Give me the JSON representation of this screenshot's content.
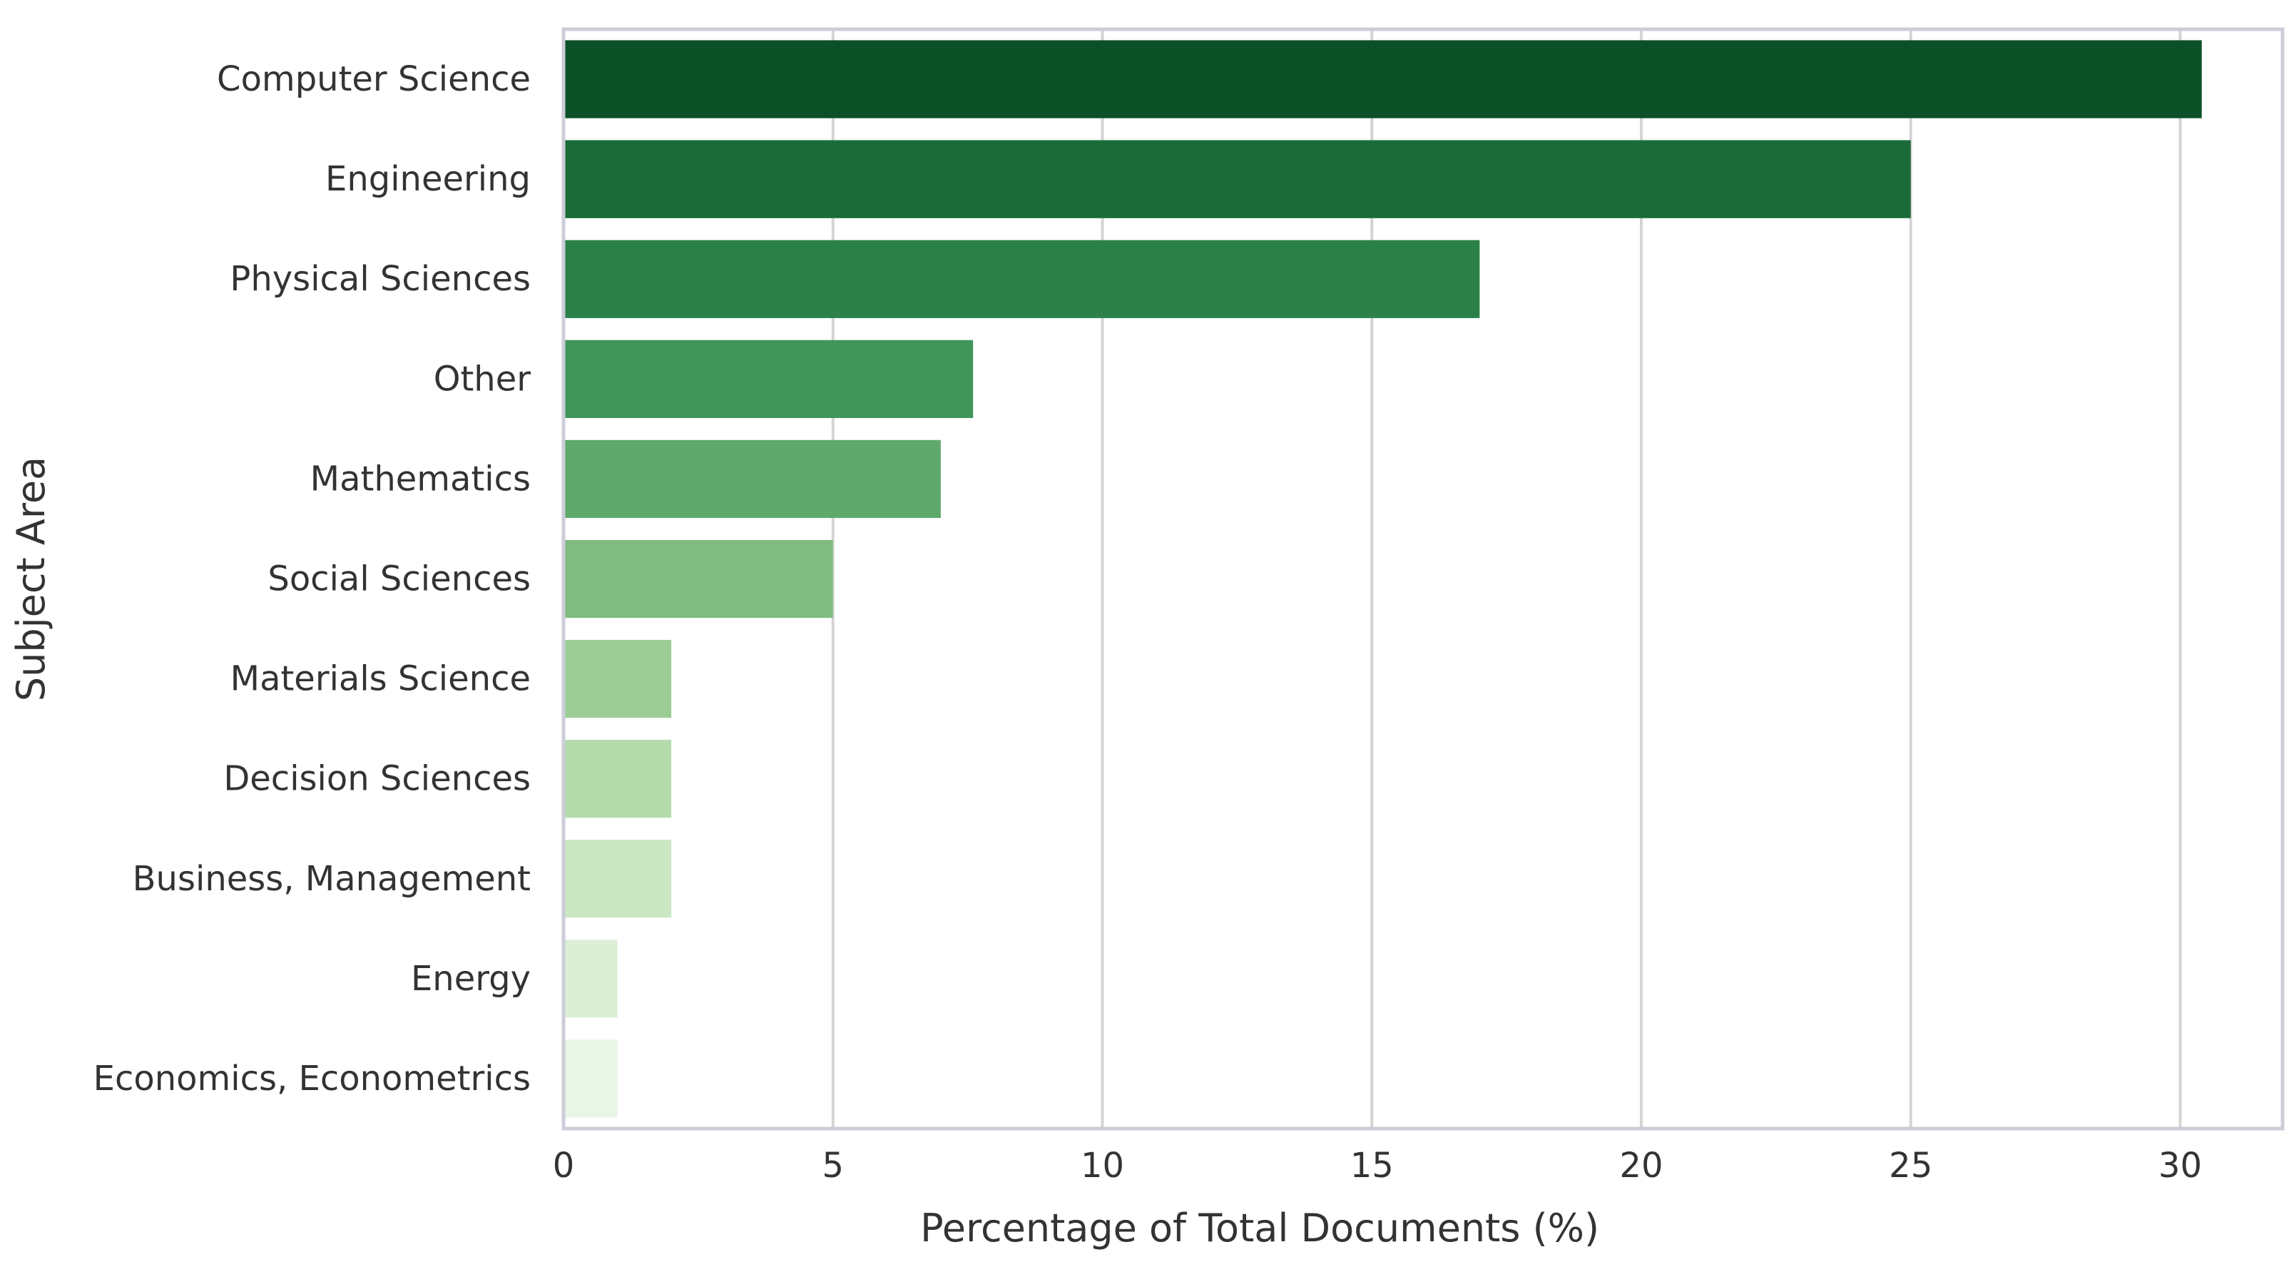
{
  "chart_data": {
    "type": "bar",
    "orientation": "horizontal",
    "title": "",
    "xlabel": "Percentage of Total Documents (%)",
    "ylabel": "Subject Area",
    "categories": [
      "Computer Science",
      "Engineering",
      "Physical Sciences",
      "Other",
      "Mathematics",
      "Social Sciences",
      "Materials Science",
      "Decision Sciences",
      "Business, Management",
      "Energy",
      "Economics, Econometrics"
    ],
    "values": [
      30.4,
      25.0,
      17.0,
      7.6,
      7.0,
      5.0,
      2.0,
      2.0,
      2.0,
      1.0,
      1.0
    ],
    "colors": [
      "#0b5128",
      "#1b6b38",
      "#2b8148",
      "#41955a",
      "#5ea96b",
      "#80bb7f",
      "#9ccd95",
      "#b3dbac",
      "#cbe6c3",
      "#dcefd6",
      "#e9f5e6"
    ],
    "x_ticks": [
      0,
      5,
      10,
      15,
      20,
      25,
      30
    ],
    "x_tick_labels": [
      "0",
      "5",
      "10",
      "15",
      "20",
      "25",
      "30"
    ],
    "xlim": [
      0,
      31.9
    ],
    "grid": "vertical",
    "grid_color": "#d4d4d4",
    "frame_color": "#cccdd8",
    "legend": "none"
  }
}
